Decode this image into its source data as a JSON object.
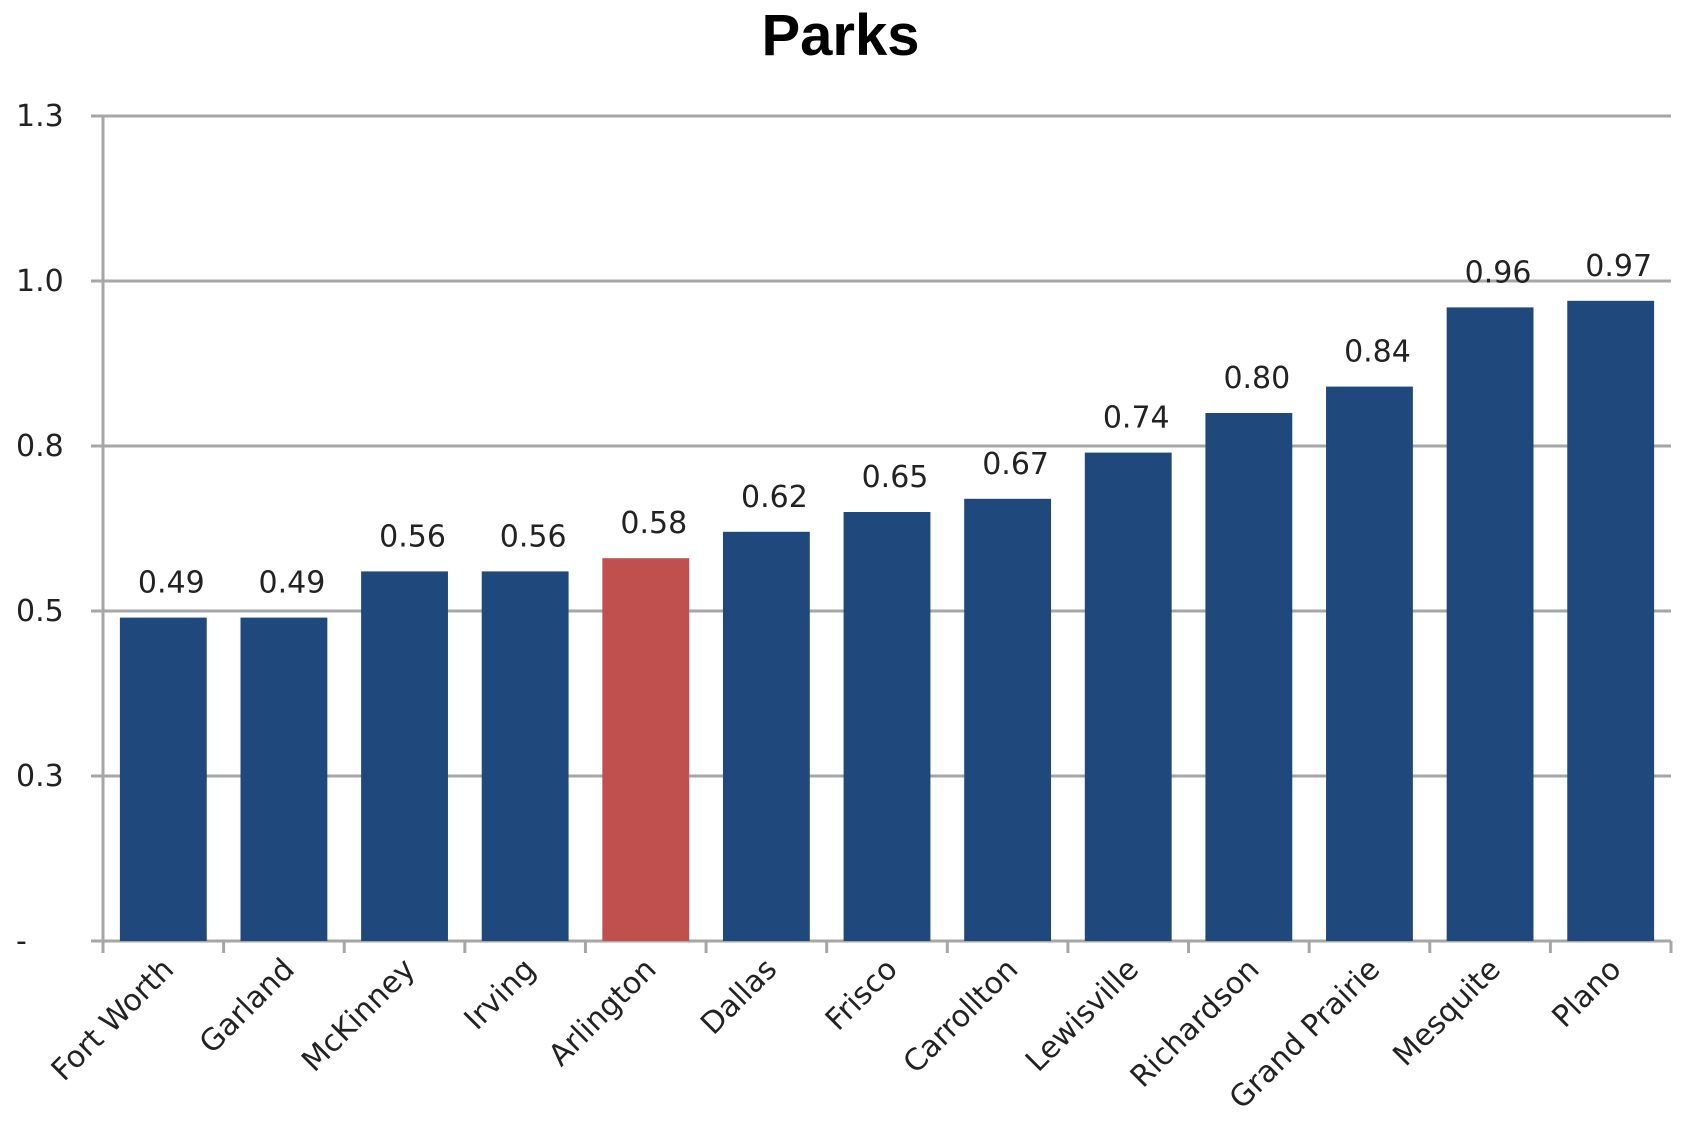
{
  "chart_data": {
    "type": "bar",
    "title": "Parks",
    "xlabel": "",
    "ylabel": "",
    "categories": [
      "Fort Worth",
      "Garland",
      "McKinney",
      "Irving",
      "Arlington",
      "Dallas",
      "Frisco",
      "Carrollton",
      "Lewisville",
      "Richardson",
      "Grand Prairie",
      "Mesquite",
      "Plano"
    ],
    "values": [
      0.49,
      0.49,
      0.56,
      0.56,
      0.58,
      0.62,
      0.65,
      0.67,
      0.74,
      0.8,
      0.84,
      0.96,
      0.97
    ],
    "data_labels": [
      "0.49",
      "0.49",
      "0.56",
      "0.56",
      "0.58",
      "0.62",
      "0.65",
      "0.67",
      "0.74",
      "0.80",
      "0.84",
      "0.96",
      "0.97"
    ],
    "y_tick_labels": [
      "-",
      "0.3",
      "0.5",
      "0.8",
      "1.0",
      "1.3"
    ],
    "ylim": [
      0,
      1.25
    ],
    "grid": true,
    "legend": "none",
    "colors": {
      "default": "#1f497d",
      "highlight": "#c0504d",
      "grid": "#a6a6a6"
    },
    "highlight_category": "Arlington"
  }
}
